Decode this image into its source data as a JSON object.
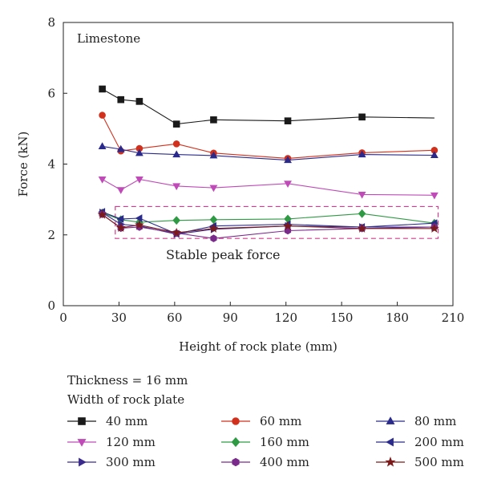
{
  "chart_data": {
    "type": "line",
    "annotation": "Limestone",
    "box_label": "Stable peak force",
    "box_range": {
      "x": [
        28,
        202
      ],
      "y": [
        1.9,
        2.8
      ]
    },
    "xlabel": "Height of rock plate (mm)",
    "ylabel": "Force (kN)",
    "xlim": [
      0,
      210
    ],
    "ylim": [
      0,
      8
    ],
    "xticks": [
      "0",
      "30",
      "60",
      "90",
      "120",
      "150",
      "180",
      "210"
    ],
    "yticks": [
      "0",
      "2",
      "4",
      "6",
      "8"
    ],
    "grid": false,
    "legend_title": [
      "Thickness = 16 mm",
      "Width of rock plate"
    ],
    "legend_placement": "bottom",
    "series": [
      {
        "name": "40 mm",
        "color": "#1a1a1a",
        "marker": "square",
        "x": [
          21,
          31,
          41,
          61,
          81,
          121,
          161,
          200
        ],
        "y": [
          6.12,
          5.82,
          5.77,
          5.13,
          5.25,
          5.22,
          5.33,
          5.3
        ]
      },
      {
        "name": "60 mm",
        "color": "#d0301c",
        "marker": "circle",
        "x": [
          21,
          31,
          41,
          61,
          81,
          121,
          161,
          200
        ],
        "y": [
          5.38,
          4.37,
          4.44,
          4.57,
          4.31,
          4.16,
          4.32,
          4.39
        ]
      },
      {
        "name": "80 mm",
        "color": "#2a2a8c",
        "marker": "triangle-up",
        "x": [
          21,
          31,
          41,
          61,
          81,
          121,
          161,
          200
        ],
        "y": [
          4.5,
          4.42,
          4.31,
          4.27,
          4.24,
          4.11,
          4.27,
          4.25
        ]
      },
      {
        "name": "120 mm",
        "color": "#c04bb8",
        "marker": "triangle-down",
        "x": [
          21,
          31,
          41,
          61,
          81,
          121,
          161,
          200
        ],
        "y": [
          3.57,
          3.27,
          3.57,
          3.38,
          3.33,
          3.45,
          3.14,
          3.12
        ]
      },
      {
        "name": "160 mm",
        "color": "#2f9a44",
        "marker": "diamond",
        "x": [
          21,
          31,
          41,
          61,
          81,
          121,
          161,
          200
        ],
        "y": [
          2.62,
          2.43,
          2.36,
          2.41,
          2.43,
          2.45,
          2.6,
          2.33
        ]
      },
      {
        "name": "200 mm",
        "color": "#2a2a8c",
        "marker": "triangle-left",
        "x": [
          21,
          31,
          41,
          61,
          81,
          121,
          161,
          200
        ],
        "y": [
          2.65,
          2.45,
          2.47,
          2.03,
          2.25,
          2.3,
          2.22,
          2.33
        ]
      },
      {
        "name": "300 mm",
        "color": "#3a2a8c",
        "marker": "triangle-right",
        "x": [
          21,
          31,
          41,
          61,
          81,
          121,
          161,
          200
        ],
        "y": [
          2.63,
          2.3,
          2.25,
          2.02,
          2.16,
          2.25,
          2.22,
          2.22
        ]
      },
      {
        "name": "400 mm",
        "color": "#7a2a8a",
        "marker": "hexagon",
        "x": [
          21,
          31,
          41,
          61,
          81,
          121,
          161,
          200
        ],
        "y": [
          2.58,
          2.19,
          2.22,
          2.05,
          1.9,
          2.12,
          2.18,
          2.22
        ]
      },
      {
        "name": "500 mm",
        "color": "#7a1a1a",
        "marker": "star",
        "x": [
          21,
          31,
          41,
          61,
          81,
          121,
          161,
          200
        ],
        "y": [
          2.57,
          2.2,
          2.28,
          2.06,
          2.18,
          2.25,
          2.18,
          2.18
        ]
      }
    ]
  }
}
